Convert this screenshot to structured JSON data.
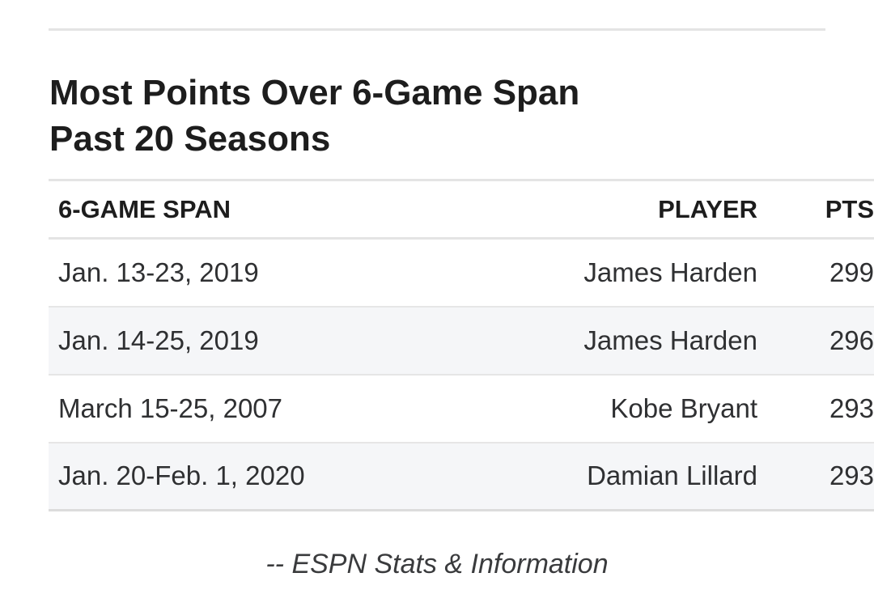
{
  "title": {
    "line1": "Most Points Over 6-Game Span",
    "line2": "Past 20 Seasons"
  },
  "table": {
    "headers": {
      "span": "6-GAME SPAN",
      "player": "PLAYER",
      "pts": "PTS"
    },
    "rows": [
      {
        "span": "Jan. 13-23, 2019",
        "player": "James Harden",
        "pts": "299"
      },
      {
        "span": "Jan. 14-25, 2019",
        "player": "James Harden",
        "pts": "296"
      },
      {
        "span": "March 15-25, 2007",
        "player": "Kobe Bryant",
        "pts": "293"
      },
      {
        "span": "Jan. 20-Feb. 1, 2020",
        "player": "Damian Lillard",
        "pts": "293"
      }
    ]
  },
  "source": "-- ESPN Stats & Information",
  "colors": {
    "rule": "#e4e4e4",
    "stripe": "#f5f6f8",
    "text": "#2b2c2d"
  }
}
